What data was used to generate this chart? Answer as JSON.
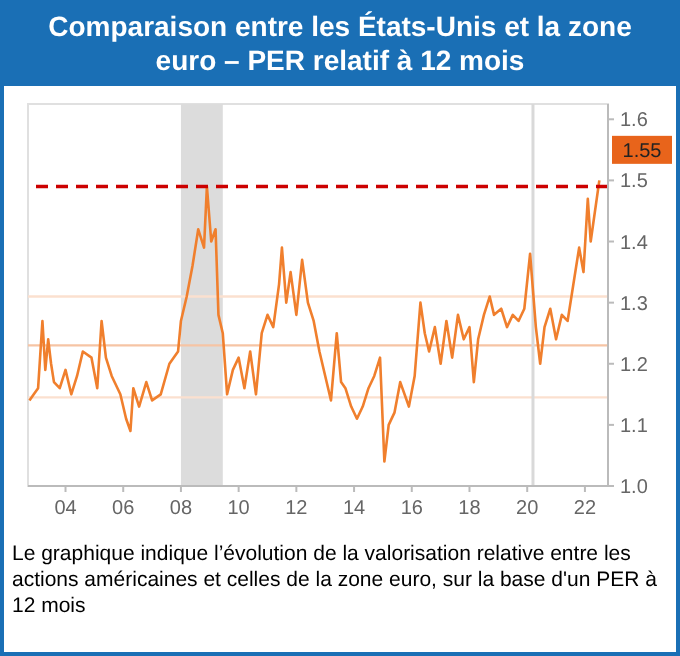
{
  "chart_data": {
    "type": "line",
    "title": "Comparaison entre les États-Unis et la zone euro – PER relatif à 12 mois",
    "annotations": [
      {
        "text": "1.55",
        "y": 1.55
      },
      "Le graphique indique l’évolution de la valorisation relative entre les actions américaines et celles de la zone euro, sur la base d'un PER à 12 mois"
    ],
    "series": [
      {
        "color": "#f07f2d",
        "x": [
          2002.75,
          2002.9,
          2003.05,
          2003.2,
          2003.3,
          2003.4,
          2003.5,
          2003.6,
          2003.8,
          2004.0,
          2004.2,
          2004.4,
          2004.6,
          2004.9,
          2005.1,
          2005.25,
          2005.4,
          2005.6,
          2005.9,
          2006.1,
          2006.25,
          2006.35,
          2006.55,
          2006.8,
          2007.0,
          2007.3,
          2007.6,
          2007.9,
          2008.0,
          2008.2,
          2008.4,
          2008.6,
          2008.8,
          2008.9,
          2009.05,
          2009.2,
          2009.3,
          2009.45,
          2009.6,
          2009.8,
          2010.0,
          2010.2,
          2010.4,
          2010.6,
          2010.8,
          2011.0,
          2011.2,
          2011.4,
          2011.5,
          2011.65,
          2011.8,
          2012.0,
          2012.2,
          2012.4,
          2012.6,
          2012.8,
          2013.0,
          2013.2,
          2013.4,
          2013.55,
          2013.7,
          2013.9,
          2014.1,
          2014.3,
          2014.5,
          2014.7,
          2014.9,
          2015.05,
          2015.2,
          2015.4,
          2015.6,
          2015.9,
          2016.1,
          2016.3,
          2016.45,
          2016.6,
          2016.8,
          2017.0,
          2017.2,
          2017.4,
          2017.6,
          2017.8,
          2018.0,
          2018.15,
          2018.3,
          2018.5,
          2018.7,
          2018.85,
          2019.1,
          2019.3,
          2019.5,
          2019.7,
          2019.9,
          2020.1,
          2020.3,
          2020.45,
          2020.6,
          2020.8,
          2021.0,
          2021.2,
          2021.4,
          2021.6,
          2021.8,
          2021.95,
          2022.1,
          2022.2,
          2022.5
        ],
        "values": [
          1.14,
          1.15,
          1.16,
          1.27,
          1.19,
          1.24,
          1.2,
          1.17,
          1.16,
          1.19,
          1.15,
          1.18,
          1.22,
          1.21,
          1.16,
          1.27,
          1.21,
          1.18,
          1.15,
          1.11,
          1.09,
          1.16,
          1.13,
          1.17,
          1.14,
          1.15,
          1.2,
          1.22,
          1.27,
          1.31,
          1.36,
          1.42,
          1.39,
          1.49,
          1.4,
          1.42,
          1.28,
          1.25,
          1.15,
          1.19,
          1.21,
          1.16,
          1.22,
          1.15,
          1.25,
          1.28,
          1.26,
          1.33,
          1.39,
          1.3,
          1.35,
          1.28,
          1.37,
          1.3,
          1.27,
          1.22,
          1.18,
          1.14,
          1.25,
          1.17,
          1.16,
          1.13,
          1.11,
          1.13,
          1.16,
          1.18,
          1.21,
          1.04,
          1.1,
          1.12,
          1.17,
          1.13,
          1.18,
          1.3,
          1.25,
          1.22,
          1.26,
          1.2,
          1.27,
          1.21,
          1.28,
          1.24,
          1.26,
          1.17,
          1.24,
          1.28,
          1.31,
          1.28,
          1.29,
          1.26,
          1.28,
          1.27,
          1.29,
          1.38,
          1.26,
          1.2,
          1.26,
          1.29,
          1.24,
          1.28,
          1.27,
          1.33,
          1.39,
          1.35,
          1.47,
          1.4,
          1.5
        ]
      }
    ],
    "xlim": [
      2002.7,
      2022.8
    ],
    "xticks": [
      {
        "value": 2004,
        "label": "04"
      },
      {
        "value": 2006,
        "label": "06"
      },
      {
        "value": 2008,
        "label": "08"
      },
      {
        "value": 2010,
        "label": "10"
      },
      {
        "value": 2012,
        "label": "12"
      },
      {
        "value": 2014,
        "label": "14"
      },
      {
        "value": 2016,
        "label": "16"
      },
      {
        "value": 2018,
        "label": "18"
      },
      {
        "value": 2020,
        "label": "20"
      },
      {
        "value": 2022,
        "label": "22"
      }
    ],
    "ylim": [
      1.0,
      1.625
    ],
    "yticks": [
      {
        "value": 1,
        "label": "1.0"
      },
      1.1,
      1.2,
      1.3,
      1.4,
      1.5,
      1.6
    ],
    "ref_lines": [
      {
        "axis": "y",
        "value": 1.49,
        "color": "#cc0000",
        "line_style": "dashed"
      },
      {
        "axis": "y",
        "value": 1.31,
        "color": "#fbe0cf"
      },
      {
        "axis": "y",
        "value": 1.23,
        "color": "#f6c4a4"
      },
      {
        "axis": "y",
        "value": 1.145,
        "color": "#fbe0cf"
      },
      {
        "axis": "x",
        "value": 2020.2,
        "color": "#d9d9d9"
      }
    ],
    "bands": [
      {
        "axis": "x",
        "from": 2008.0,
        "to": 2009.45,
        "color": "#dcdcdc"
      }
    ],
    "grid": false
  }
}
